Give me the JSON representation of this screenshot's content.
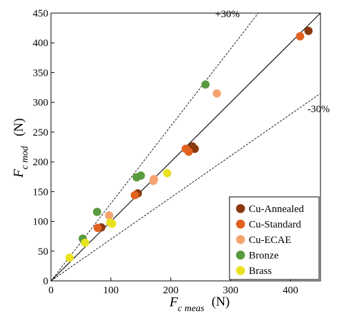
{
  "chart_data": {
    "type": "scatter",
    "xlabel": {
      "main": "F",
      "sub": "c meas",
      "unit": "(N)"
    },
    "ylabel": {
      "main": "F",
      "sub": "c mod",
      "unit": "(N)"
    },
    "xlim": [
      0,
      450
    ],
    "ylim": [
      0,
      450
    ],
    "xticks": [
      "0",
      "100",
      "200",
      "300",
      "400"
    ],
    "yticks": [
      "0",
      "50",
      "100",
      "150",
      "200",
      "250",
      "300",
      "350",
      "400",
      "450"
    ],
    "grid": false,
    "legend_position": "bottom-right",
    "reference_lines": [
      {
        "label": "",
        "slope": 1.0,
        "style": "solid"
      },
      {
        "label": "+30%",
        "slope": 1.3,
        "style": "dashed"
      },
      {
        "label": "-30%",
        "slope": 0.7,
        "style": "dashed"
      }
    ],
    "series": [
      {
        "name": "Cu-Annealed",
        "color": "#8B3A0F",
        "points": [
          [
            84,
            90
          ],
          [
            145,
            147
          ],
          [
            236,
            226
          ],
          [
            240,
            222
          ],
          [
            430,
            420
          ]
        ]
      },
      {
        "name": "Cu-Standard",
        "color": "#E2611F",
        "points": [
          [
            78,
            89
          ],
          [
            140,
            144
          ],
          [
            225,
            222
          ],
          [
            230,
            217
          ],
          [
            416,
            411
          ]
        ]
      },
      {
        "name": "Cu-ECAE",
        "color": "#F4A36F",
        "points": [
          [
            97,
            110
          ],
          [
            171,
            168
          ],
          [
            172,
            171
          ],
          [
            277,
            315
          ]
        ]
      },
      {
        "name": "Bronze",
        "color": "#5A9A3E",
        "points": [
          [
            53,
            71
          ],
          [
            77,
            116
          ],
          [
            143,
            174
          ],
          [
            150,
            177
          ],
          [
            258,
            330
          ]
        ]
      },
      {
        "name": "Brass",
        "color": "#E8E21F",
        "points": [
          [
            31,
            39
          ],
          [
            57,
            64
          ],
          [
            99,
            98
          ],
          [
            102,
            96
          ],
          [
            194,
            181
          ]
        ]
      }
    ]
  }
}
